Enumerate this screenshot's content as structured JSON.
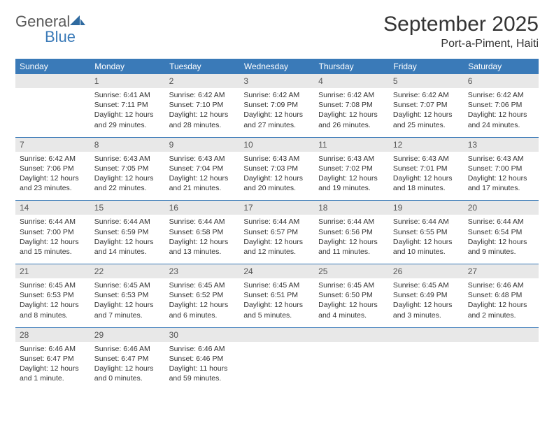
{
  "brand": {
    "general": "General",
    "blue": "Blue"
  },
  "title": "September 2025",
  "location": "Port-a-Piment, Haiti",
  "colors": {
    "header_bg": "#3a7ab8",
    "header_text": "#ffffff",
    "daynum_bg": "#e8e8e8",
    "text": "#333333",
    "rule": "#3a7ab8",
    "logo_gray": "#5a5a5a",
    "logo_blue": "#3a7ab8"
  },
  "weekdays": [
    "Sunday",
    "Monday",
    "Tuesday",
    "Wednesday",
    "Thursday",
    "Friday",
    "Saturday"
  ],
  "weeks": [
    [
      null,
      {
        "n": "1",
        "sr": "Sunrise: 6:41 AM",
        "ss": "Sunset: 7:11 PM",
        "d1": "Daylight: 12 hours",
        "d2": "and 29 minutes."
      },
      {
        "n": "2",
        "sr": "Sunrise: 6:42 AM",
        "ss": "Sunset: 7:10 PM",
        "d1": "Daylight: 12 hours",
        "d2": "and 28 minutes."
      },
      {
        "n": "3",
        "sr": "Sunrise: 6:42 AM",
        "ss": "Sunset: 7:09 PM",
        "d1": "Daylight: 12 hours",
        "d2": "and 27 minutes."
      },
      {
        "n": "4",
        "sr": "Sunrise: 6:42 AM",
        "ss": "Sunset: 7:08 PM",
        "d1": "Daylight: 12 hours",
        "d2": "and 26 minutes."
      },
      {
        "n": "5",
        "sr": "Sunrise: 6:42 AM",
        "ss": "Sunset: 7:07 PM",
        "d1": "Daylight: 12 hours",
        "d2": "and 25 minutes."
      },
      {
        "n": "6",
        "sr": "Sunrise: 6:42 AM",
        "ss": "Sunset: 7:06 PM",
        "d1": "Daylight: 12 hours",
        "d2": "and 24 minutes."
      }
    ],
    [
      {
        "n": "7",
        "sr": "Sunrise: 6:42 AM",
        "ss": "Sunset: 7:06 PM",
        "d1": "Daylight: 12 hours",
        "d2": "and 23 minutes."
      },
      {
        "n": "8",
        "sr": "Sunrise: 6:43 AM",
        "ss": "Sunset: 7:05 PM",
        "d1": "Daylight: 12 hours",
        "d2": "and 22 minutes."
      },
      {
        "n": "9",
        "sr": "Sunrise: 6:43 AM",
        "ss": "Sunset: 7:04 PM",
        "d1": "Daylight: 12 hours",
        "d2": "and 21 minutes."
      },
      {
        "n": "10",
        "sr": "Sunrise: 6:43 AM",
        "ss": "Sunset: 7:03 PM",
        "d1": "Daylight: 12 hours",
        "d2": "and 20 minutes."
      },
      {
        "n": "11",
        "sr": "Sunrise: 6:43 AM",
        "ss": "Sunset: 7:02 PM",
        "d1": "Daylight: 12 hours",
        "d2": "and 19 minutes."
      },
      {
        "n": "12",
        "sr": "Sunrise: 6:43 AM",
        "ss": "Sunset: 7:01 PM",
        "d1": "Daylight: 12 hours",
        "d2": "and 18 minutes."
      },
      {
        "n": "13",
        "sr": "Sunrise: 6:43 AM",
        "ss": "Sunset: 7:00 PM",
        "d1": "Daylight: 12 hours",
        "d2": "and 17 minutes."
      }
    ],
    [
      {
        "n": "14",
        "sr": "Sunrise: 6:44 AM",
        "ss": "Sunset: 7:00 PM",
        "d1": "Daylight: 12 hours",
        "d2": "and 15 minutes."
      },
      {
        "n": "15",
        "sr": "Sunrise: 6:44 AM",
        "ss": "Sunset: 6:59 PM",
        "d1": "Daylight: 12 hours",
        "d2": "and 14 minutes."
      },
      {
        "n": "16",
        "sr": "Sunrise: 6:44 AM",
        "ss": "Sunset: 6:58 PM",
        "d1": "Daylight: 12 hours",
        "d2": "and 13 minutes."
      },
      {
        "n": "17",
        "sr": "Sunrise: 6:44 AM",
        "ss": "Sunset: 6:57 PM",
        "d1": "Daylight: 12 hours",
        "d2": "and 12 minutes."
      },
      {
        "n": "18",
        "sr": "Sunrise: 6:44 AM",
        "ss": "Sunset: 6:56 PM",
        "d1": "Daylight: 12 hours",
        "d2": "and 11 minutes."
      },
      {
        "n": "19",
        "sr": "Sunrise: 6:44 AM",
        "ss": "Sunset: 6:55 PM",
        "d1": "Daylight: 12 hours",
        "d2": "and 10 minutes."
      },
      {
        "n": "20",
        "sr": "Sunrise: 6:44 AM",
        "ss": "Sunset: 6:54 PM",
        "d1": "Daylight: 12 hours",
        "d2": "and 9 minutes."
      }
    ],
    [
      {
        "n": "21",
        "sr": "Sunrise: 6:45 AM",
        "ss": "Sunset: 6:53 PM",
        "d1": "Daylight: 12 hours",
        "d2": "and 8 minutes."
      },
      {
        "n": "22",
        "sr": "Sunrise: 6:45 AM",
        "ss": "Sunset: 6:53 PM",
        "d1": "Daylight: 12 hours",
        "d2": "and 7 minutes."
      },
      {
        "n": "23",
        "sr": "Sunrise: 6:45 AM",
        "ss": "Sunset: 6:52 PM",
        "d1": "Daylight: 12 hours",
        "d2": "and 6 minutes."
      },
      {
        "n": "24",
        "sr": "Sunrise: 6:45 AM",
        "ss": "Sunset: 6:51 PM",
        "d1": "Daylight: 12 hours",
        "d2": "and 5 minutes."
      },
      {
        "n": "25",
        "sr": "Sunrise: 6:45 AM",
        "ss": "Sunset: 6:50 PM",
        "d1": "Daylight: 12 hours",
        "d2": "and 4 minutes."
      },
      {
        "n": "26",
        "sr": "Sunrise: 6:45 AM",
        "ss": "Sunset: 6:49 PM",
        "d1": "Daylight: 12 hours",
        "d2": "and 3 minutes."
      },
      {
        "n": "27",
        "sr": "Sunrise: 6:46 AM",
        "ss": "Sunset: 6:48 PM",
        "d1": "Daylight: 12 hours",
        "d2": "and 2 minutes."
      }
    ],
    [
      {
        "n": "28",
        "sr": "Sunrise: 6:46 AM",
        "ss": "Sunset: 6:47 PM",
        "d1": "Daylight: 12 hours",
        "d2": "and 1 minute."
      },
      {
        "n": "29",
        "sr": "Sunrise: 6:46 AM",
        "ss": "Sunset: 6:47 PM",
        "d1": "Daylight: 12 hours",
        "d2": "and 0 minutes."
      },
      {
        "n": "30",
        "sr": "Sunrise: 6:46 AM",
        "ss": "Sunset: 6:46 PM",
        "d1": "Daylight: 11 hours",
        "d2": "and 59 minutes."
      },
      null,
      null,
      null,
      null
    ]
  ]
}
